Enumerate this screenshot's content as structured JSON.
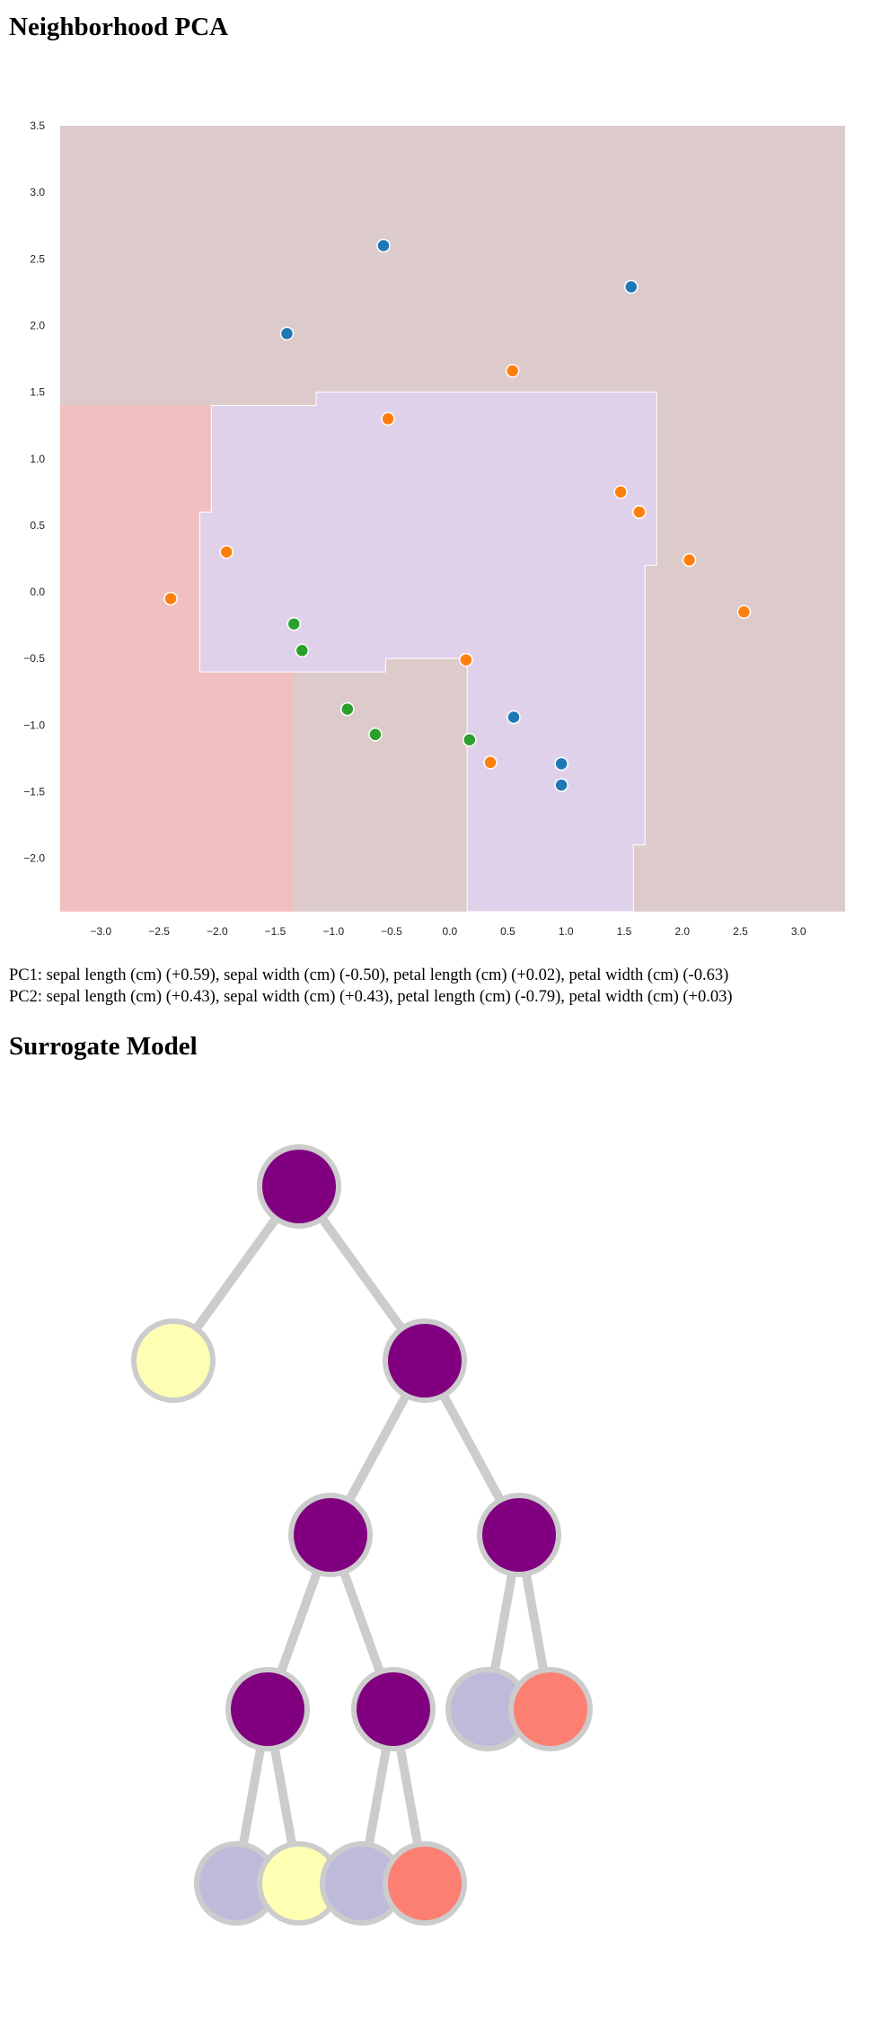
{
  "sections": {
    "pca_title": "Neighborhood PCA",
    "surrogate_title": "Surrogate Model"
  },
  "pca_components": {
    "pc1": "PC1: sepal length (cm) (+0.59), sepal width (cm) (-0.50), petal length (cm) (+0.02), petal width (cm) (-0.63)",
    "pc2": "PC2: sepal length (cm) (+0.43), sepal width (cm) (+0.43), petal length (cm) (-0.79), petal width (cm) (+0.03)"
  },
  "colors": {
    "region_brown": "#dccbca",
    "region_red": "#f1bfbf",
    "region_purple": "#e0d1ea",
    "class_blue": "#1f77b4",
    "class_orange": "#ff7f0e",
    "class_green": "#2ca02c",
    "node_purple": "#800080",
    "leaf_yellow": "#ffffb3",
    "leaf_lavender": "#bebada",
    "leaf_salmon": "#fb8072",
    "node_ring": "#cccccc"
  },
  "chart_data": {
    "type": "scatter",
    "xlim": [
      -3.35,
      3.4
    ],
    "ylim": [
      -2.4,
      3.5
    ],
    "xticks": [
      -3.0,
      -2.5,
      -2.0,
      -1.5,
      -1.0,
      -0.5,
      0.0,
      0.5,
      1.0,
      1.5,
      2.0,
      2.5,
      3.0
    ],
    "xtick_labels": [
      "−3.0",
      "−2.5",
      "−2.0",
      "−1.5",
      "−1.0",
      "−0.5",
      "0.0",
      "0.5",
      "1.0",
      "1.5",
      "2.0",
      "2.5",
      "3.0"
    ],
    "yticks": [
      3.5,
      3.0,
      2.5,
      2.0,
      1.5,
      1.0,
      0.5,
      0.0,
      -0.5,
      -1.0,
      -1.5,
      -2.0
    ],
    "ytick_labels": [
      "3.5",
      "3.0",
      "2.5",
      "2.0",
      "1.5",
      "1.0",
      "0.5",
      "0.0",
      "−0.5",
      "−1.0",
      "−1.5",
      "−2.0"
    ],
    "grid": false,
    "decision_regions": [
      {
        "class": "brown",
        "polygon": [
          [
            -3.35,
            3.5
          ],
          [
            3.4,
            3.5
          ],
          [
            3.4,
            -2.4
          ],
          [
            -3.35,
            -2.4
          ]
        ]
      },
      {
        "class": "red",
        "polygon": [
          [
            -3.35,
            1.4
          ],
          [
            -1.35,
            1.4
          ],
          [
            -1.35,
            -2.4
          ],
          [
            -3.35,
            -2.4
          ]
        ]
      },
      {
        "class": "purple",
        "polygon": [
          [
            -2.05,
            1.4
          ],
          [
            -1.15,
            1.4
          ],
          [
            -1.15,
            1.5
          ],
          [
            1.78,
            1.5
          ],
          [
            1.78,
            0.2
          ],
          [
            1.68,
            0.2
          ],
          [
            1.68,
            -1.9
          ],
          [
            1.58,
            -1.9
          ],
          [
            1.58,
            -2.4
          ],
          [
            0.15,
            -2.4
          ],
          [
            0.15,
            -0.5
          ],
          [
            -0.55,
            -0.5
          ],
          [
            -0.55,
            -0.6
          ],
          [
            -2.15,
            -0.6
          ],
          [
            -2.15,
            0.6
          ],
          [
            -2.05,
            0.6
          ]
        ]
      }
    ],
    "points": [
      {
        "x": -0.57,
        "y": 2.6,
        "class": "blue"
      },
      {
        "x": 1.56,
        "y": 2.29,
        "class": "blue"
      },
      {
        "x": -1.4,
        "y": 1.94,
        "class": "blue"
      },
      {
        "x": 0.54,
        "y": 1.66,
        "class": "orange"
      },
      {
        "x": -0.53,
        "y": 1.3,
        "class": "orange"
      },
      {
        "x": 1.47,
        "y": 0.75,
        "class": "orange"
      },
      {
        "x": 1.63,
        "y": 0.6,
        "class": "orange"
      },
      {
        "x": -1.92,
        "y": 0.3,
        "class": "orange"
      },
      {
        "x": 2.06,
        "y": 0.24,
        "class": "orange"
      },
      {
        "x": -2.4,
        "y": -0.05,
        "class": "orange"
      },
      {
        "x": 2.53,
        "y": -0.15,
        "class": "orange"
      },
      {
        "x": -1.34,
        "y": -0.24,
        "class": "green"
      },
      {
        "x": -1.27,
        "y": -0.44,
        "class": "green"
      },
      {
        "x": 0.14,
        "y": -0.51,
        "class": "orange"
      },
      {
        "x": -0.88,
        "y": -0.88,
        "class": "green"
      },
      {
        "x": 0.55,
        "y": -0.94,
        "class": "blue"
      },
      {
        "x": -0.64,
        "y": -1.07,
        "class": "green"
      },
      {
        "x": 0.17,
        "y": -1.11,
        "class": "green"
      },
      {
        "x": 0.35,
        "y": -1.28,
        "class": "orange"
      },
      {
        "x": 0.96,
        "y": -1.29,
        "class": "blue"
      },
      {
        "x": 0.96,
        "y": -1.45,
        "class": "blue"
      }
    ]
  },
  "tree": {
    "nodes": [
      {
        "id": 0,
        "parent": null,
        "color": "purple"
      },
      {
        "id": 1,
        "parent": 0,
        "color": "yellow"
      },
      {
        "id": 2,
        "parent": 0,
        "color": "purple"
      },
      {
        "id": 3,
        "parent": 2,
        "color": "purple"
      },
      {
        "id": 4,
        "parent": 2,
        "color": "purple"
      },
      {
        "id": 5,
        "parent": 3,
        "color": "purple"
      },
      {
        "id": 6,
        "parent": 3,
        "color": "purple"
      },
      {
        "id": 7,
        "parent": 4,
        "color": "lavender"
      },
      {
        "id": 8,
        "parent": 4,
        "color": "salmon"
      },
      {
        "id": 9,
        "parent": 5,
        "color": "lavender"
      },
      {
        "id": 10,
        "parent": 5,
        "color": "yellow"
      },
      {
        "id": 11,
        "parent": 6,
        "color": "lavender"
      },
      {
        "id": 12,
        "parent": 6,
        "color": "salmon"
      }
    ]
  }
}
